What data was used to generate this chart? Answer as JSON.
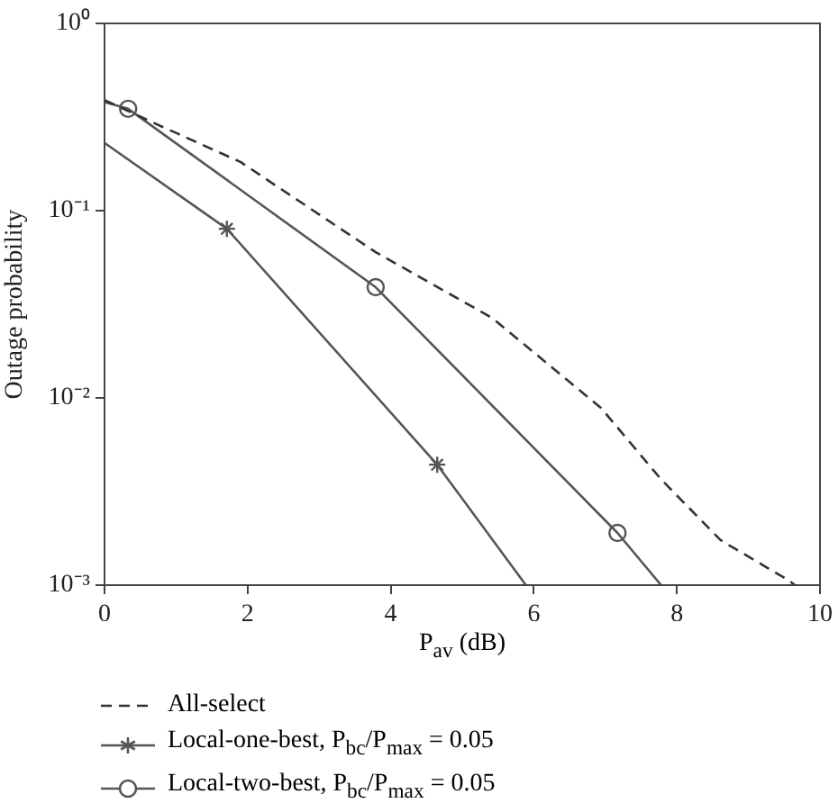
{
  "chart_data": {
    "type": "line",
    "xlabel": "P$_{av}$ (dB)",
    "ylabel": "Outage probability",
    "log": "y",
    "grid": false,
    "legend": "bottom",
    "xlim": [
      0,
      10
    ],
    "xticks": [
      0,
      2,
      4,
      6,
      8,
      10
    ],
    "ylim": [
      0.001,
      1
    ],
    "yticks": [
      {
        "value": 0.001,
        "label": "10⁻³"
      },
      {
        "value": 0.01,
        "label": "10⁻²"
      },
      {
        "value": 0.1,
        "label": "10⁻¹"
      },
      {
        "value": 1,
        "label": "10⁰"
      }
    ],
    "series": [
      {
        "name": "All-select",
        "color": "#333333",
        "line_style": "dashed",
        "marker": "none",
        "x": [
          0,
          0.81,
          1.0,
          1.9,
          3.79,
          5.42,
          6.94,
          7.78,
          8.61,
          9.58,
          9.65
        ],
        "values": [
          0.39,
          0.28,
          0.26,
          0.182,
          0.06,
          0.0267,
          0.00883,
          0.00367,
          0.00174,
          0.00105,
          0.001
        ]
      },
      {
        "name": "Local-one-best, P$_{bc}$/P$_{max}$ = 0.05",
        "color": "#555555",
        "line_style": "solid",
        "marker": "cross",
        "x": [
          0,
          1.71,
          4.65,
          5.89
        ],
        "values": [
          0.23,
          0.08,
          0.0044,
          0.001
        ]
      },
      {
        "name": "Local-two-best, P$_{bc}$/P$_{max}$ = 0.05",
        "color": "#555555",
        "line_style": "solid",
        "marker": "circle",
        "x": [
          0,
          0.33,
          3.79,
          7.17,
          7.78
        ],
        "values": [
          0.38,
          0.35,
          0.039,
          0.0019,
          0.001
        ]
      }
    ]
  }
}
